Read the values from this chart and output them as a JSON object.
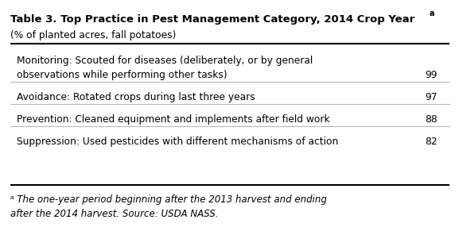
{
  "title": "Table 3. Top Practice in Pest Management Category, 2014 Crop Year",
  "title_superscript": " a",
  "subtitle": "(% of planted acres, fall potatoes)",
  "rows": [
    {
      "label_line1": "Monitoring: Scouted for diseases (deliberately, or by general",
      "label_line2": "observations while performing other tasks)",
      "value": "99"
    },
    {
      "label_line1": "Avoidance: Rotated crops during last three years",
      "label_line2": "",
      "value": "97"
    },
    {
      "label_line1": "Prevention: Cleaned equipment and implements after field work",
      "label_line2": "",
      "value": "88"
    },
    {
      "label_line1": "Suppression: Used pesticides with different mechanisms of action",
      "label_line2": "",
      "value": "82"
    }
  ],
  "footnote_line1": "ᵃ The one-year period beginning after the 2013 harvest and ending",
  "footnote_line2": "after the 2014 harvest. Source: USDA NASS.",
  "bg_color": "#ffffff",
  "text_color": "#000000",
  "title_fontsize": 9.5,
  "body_fontsize": 8.8,
  "footnote_fontsize": 8.5
}
